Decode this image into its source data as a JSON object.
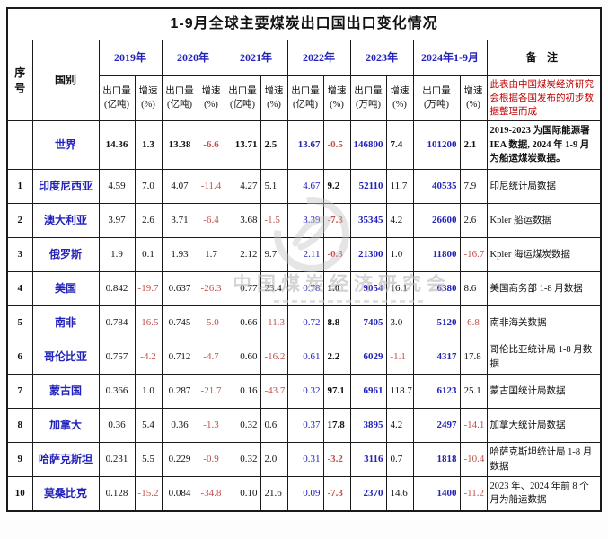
{
  "header": {
    "seq": "序号",
    "country": "国别",
    "remark": "备 注",
    "note": "此表由中国煤炭经济研究会根据各国发布的初步数据整理而成",
    "volume_label": "出口量",
    "growth_label": "增速",
    "growth_unit": "(%)",
    "years": [
      {
        "label": "2019年",
        "volume_unit": "(亿吨)"
      },
      {
        "label": "2020年",
        "volume_unit": "(亿吨)"
      },
      {
        "label": "2021年",
        "volume_unit": "(亿吨)"
      },
      {
        "label": "2022年",
        "volume_unit": "(亿吨)"
      },
      {
        "label": "2023年",
        "volume_unit": "(万吨)"
      },
      {
        "label": "2024年1-9月",
        "volume_unit": "(万吨)"
      }
    ]
  },
  "watermark": {
    "text": "中国煤炭经济研究会"
  },
  "colors": {
    "accent_blue": "#2323BB",
    "negative_red": "#C0504D",
    "note_red": "#C00000"
  },
  "chart_data": {
    "type": "table",
    "title": "1-9月全球主要煤炭出口国出口变化情况",
    "columns": [
      "序号",
      "国别",
      "2019年出口量(亿吨)",
      "2019年增速(%)",
      "2020年出口量(亿吨)",
      "2020年增速(%)",
      "2021年出口量(亿吨)",
      "2021年增速(%)",
      "2022年出口量(亿吨)",
      "2022年增速(%)",
      "2023年出口量(万吨)",
      "2023年增速(%)",
      "2024年1-9月出口量(万吨)",
      "2024年1-9月增速(%)",
      "备注"
    ],
    "rows": [
      [
        "",
        "世界",
        "14.36",
        "1.3",
        "13.38",
        "-6.6",
        "13.71",
        "2.5",
        "13.67",
        "-0.5",
        "146800",
        "7.4",
        "101200",
        "2.1",
        "2019-2023 为国际能源署IEA 数据, 2024 年 1-9 月为船运煤炭数据。"
      ],
      [
        "1",
        "印度尼西亚",
        "4.59",
        "7.0",
        "4.07",
        "-11.4",
        "4.27",
        "5.1",
        "4.67",
        "9.2",
        "52110",
        "11.7",
        "40535",
        "7.9",
        "印尼统计局数据"
      ],
      [
        "2",
        "澳大利亚",
        "3.97",
        "2.6",
        "3.71",
        "-6.4",
        "3.68",
        "-1.5",
        "3.39",
        "-7.3",
        "35345",
        "4.2",
        "26600",
        "2.6",
        "Kpler 船运数据"
      ],
      [
        "3",
        "俄罗斯",
        "1.9",
        "0.1",
        "1.93",
        "1.7",
        "2.12",
        "9.7",
        "2.11",
        "-0.3",
        "21300",
        "1.0",
        "11800",
        "-16.7",
        "Kpler 海运煤炭数据"
      ],
      [
        "4",
        "美国",
        "0.842",
        "-19.7",
        "0.637",
        "-26.3",
        "0.77",
        "23.4",
        "0.78",
        "1.0",
        "9054",
        "16.1",
        "6380",
        "8.6",
        "美国商务部 1-8 月数据"
      ],
      [
        "5",
        "南非",
        "0.784",
        "-16.5",
        "0.745",
        "-5.0",
        "0.66",
        "-11.3",
        "0.72",
        "8.8",
        "7405",
        "3.0",
        "5120",
        "-6.8",
        "南非海关数据"
      ],
      [
        "6",
        "哥伦比亚",
        "0.757",
        "-4.2",
        "0.712",
        "-4.7",
        "0.60",
        "-16.2",
        "0.61",
        "2.2",
        "6029",
        "-1.1",
        "4317",
        "17.8",
        "哥伦比亚统计局 1-8 月数据"
      ],
      [
        "7",
        "蒙古国",
        "0.366",
        "1.0",
        "0.287",
        "-21.7",
        "0.16",
        "-43.7",
        "0.32",
        "97.1",
        "6961",
        "118.7",
        "6123",
        "25.1",
        "蒙古国统计局数据"
      ],
      [
        "8",
        "加拿大",
        "0.36",
        "5.4",
        "0.36",
        "-1.3",
        "0.32",
        "0.6",
        "0.37",
        "17.8",
        "3895",
        "4.2",
        "2497",
        "-14.1",
        "加拿大统计局数据"
      ],
      [
        "9",
        "哈萨克斯坦",
        "0.231",
        "5.5",
        "0.229",
        "-0.9",
        "0.32",
        "2.0",
        "0.31",
        "-3.2",
        "3116",
        "0.7",
        "1818",
        "-10.4",
        "哈萨克斯坦统计局 1-8 月数据"
      ],
      [
        "10",
        "莫桑比克",
        "0.128",
        "-15.2",
        "0.084",
        "-34.8",
        "0.10",
        "21.6",
        "0.09",
        "-7.3",
        "2370",
        "14.6",
        "1400",
        "-11.2",
        "2023 年、2024 年前 8 个月为船运数据"
      ]
    ]
  }
}
